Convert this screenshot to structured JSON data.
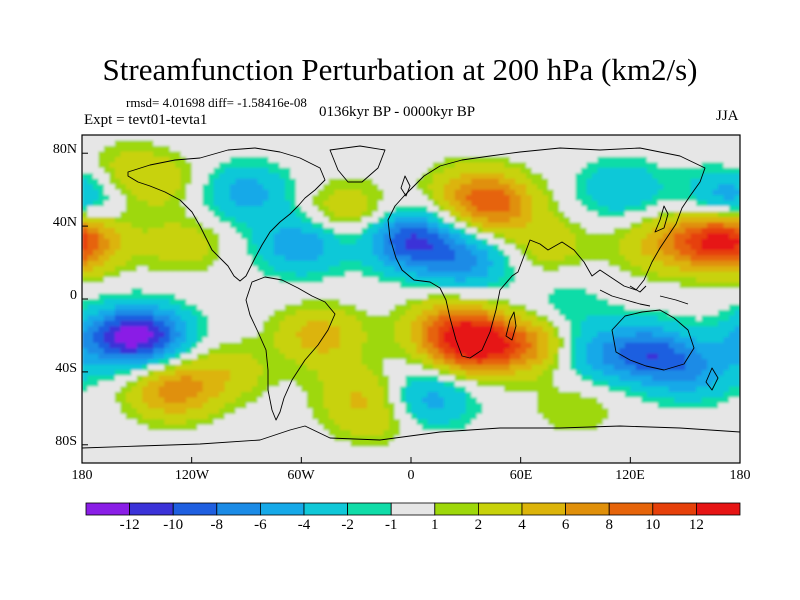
{
  "title": "Streamfunction Perturbation at 200 hPa (km2/s)",
  "stats": "rmsd= 4.01698  diff= -1.58416e-08",
  "experiment": "Expt = tevt01-tevta1",
  "period": "0136kyr BP - 0000kyr BP",
  "season": "JJA",
  "lat_ticks": [
    "80N",
    "40N",
    "0",
    "40S",
    "80S"
  ],
  "lon_ticks": [
    "180",
    "120W",
    "60W",
    "0",
    "60E",
    "120E",
    "180"
  ],
  "colorbar": {
    "labels": [
      "-12",
      "-10",
      "-8",
      "-6",
      "-4",
      "-2",
      "-1",
      "1",
      "2",
      "4",
      "6",
      "8",
      "10",
      "12"
    ],
    "colors": [
      "#8a1ee6",
      "#3b32d8",
      "#1f5fe0",
      "#1b8be6",
      "#16a9e8",
      "#10c8d8",
      "#10dca8",
      "#e6e6e6",
      "#9ed80a",
      "#c8d20a",
      "#dcb40a",
      "#e0900a",
      "#e6640a",
      "#e6400a",
      "#e61414"
    ]
  },
  "chart_data": {
    "type": "heatmap",
    "title": "Streamfunction Perturbation at 200 hPa (km2/s)",
    "units": "km2/s",
    "level": "200 hPa",
    "season": "JJA",
    "contour_levels": [
      -12,
      -10,
      -8,
      -6,
      -4,
      -2,
      -1,
      1,
      2,
      4,
      6,
      8,
      10,
      12
    ],
    "lon_range": [
      -180,
      180
    ],
    "lat_range": [
      -90,
      90
    ],
    "centers": [
      {
        "lon": 35,
        "lat": -25,
        "value": 12
      },
      {
        "lon": 20,
        "lat": -15,
        "value": 6
      },
      {
        "lon": 65,
        "lat": -25,
        "value": 6
      },
      {
        "lon": -50,
        "lat": -20,
        "value": 5
      },
      {
        "lon": -130,
        "lat": -50,
        "value": 7
      },
      {
        "lon": 10,
        "lat": -55,
        "value": -5
      },
      {
        "lon": -100,
        "lat": -40,
        "value": 3
      },
      {
        "lon": 45,
        "lat": 52,
        "value": 8
      },
      {
        "lon": 30,
        "lat": 60,
        "value": 3
      },
      {
        "lon": 165,
        "lat": 32,
        "value": 9
      },
      {
        "lon": 135,
        "lat": 30,
        "value": 4
      },
      {
        "lon": -180,
        "lat": 32,
        "value": 6
      },
      {
        "lon": -35,
        "lat": 48,
        "value": 4
      },
      {
        "lon": -125,
        "lat": 30,
        "value": 3
      },
      {
        "lon": -140,
        "lat": 65,
        "value": 3
      },
      {
        "lon": 0,
        "lat": 32,
        "value": -10
      },
      {
        "lon": 30,
        "lat": 20,
        "value": -6
      },
      {
        "lon": -60,
        "lat": 30,
        "value": -6
      },
      {
        "lon": -90,
        "lat": 58,
        "value": -5
      },
      {
        "lon": -145,
        "lat": -20,
        "value": -10
      },
      {
        "lon": -165,
        "lat": -22,
        "value": -6
      },
      {
        "lon": 130,
        "lat": -30,
        "value": -8
      },
      {
        "lon": 155,
        "lat": -40,
        "value": -5
      },
      {
        "lon": 100,
        "lat": -30,
        "value": -4
      },
      {
        "lon": 115,
        "lat": 60,
        "value": -4
      },
      {
        "lon": 175,
        "lat": 55,
        "value": -6
      },
      {
        "lon": 75,
        "lat": 30,
        "value": 3
      },
      {
        "lon": 85,
        "lat": -5,
        "value": -2
      },
      {
        "lon": -30,
        "lat": -50,
        "value": 3
      },
      {
        "lon": -20,
        "lat": -65,
        "value": 3
      },
      {
        "lon": 90,
        "lat": -60,
        "value": 2
      },
      {
        "lon": -160,
        "lat": 70,
        "value": 2
      }
    ]
  }
}
